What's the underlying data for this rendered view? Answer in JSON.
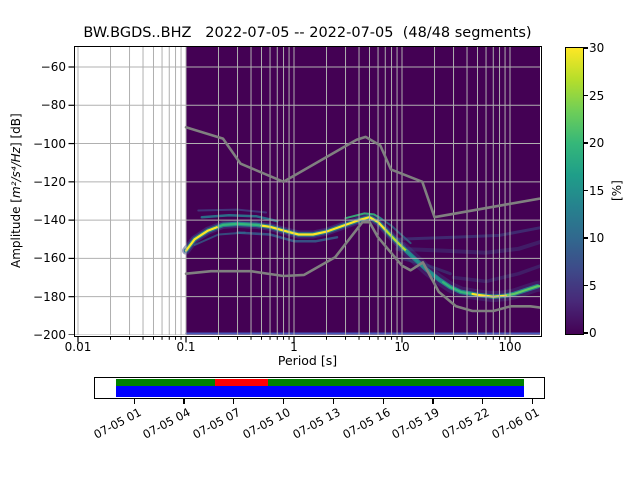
{
  "figure": {
    "title": "BW.BGDS..BHZ   2022-07-05 -- 2022-07-05  (48/48 segments)"
  },
  "chart_data": {
    "type": "heatmap",
    "title": "BW.BGDS..BHZ   2022-07-05 -- 2022-07-05  (48/48 segments)",
    "xlabel": "Period [s]",
    "ylabel_prefix": "Amplitude [",
    "ylabel_math": "m²/s⁴/Hz",
    "ylabel_suffix": "] [dB]",
    "xscale": "log",
    "xlim": [
      0.0094,
      190
    ],
    "ylim": [
      -200,
      -49.5
    ],
    "grid": true,
    "x_tick_values": [
      0.01,
      0.1,
      1,
      10,
      100
    ],
    "x_tick_labels": [
      "0.01",
      "0.1",
      "1",
      "10",
      "100"
    ],
    "y_tick_values": [
      -60,
      -80,
      -100,
      -120,
      -140,
      -160,
      -180,
      -200
    ],
    "y_tick_labels": [
      "−60",
      "−80",
      "−100",
      "−120",
      "−140",
      "−160",
      "−180",
      "−200"
    ],
    "background_color": "#440154",
    "grid_color": "#b0b0b0",
    "no_data_before_period": 0.1,
    "bottom_row_line": {
      "color": "#4a63c8",
      "dB": -199.2
    },
    "colorbar": {
      "label": "[%]",
      "cmap": "viridis",
      "vmin": 0,
      "vmax": 30,
      "tick_values": [
        0,
        5,
        10,
        15,
        20,
        25,
        30
      ],
      "tick_labels": [
        "0",
        "5",
        "10",
        "15",
        "20",
        "25",
        "30"
      ]
    },
    "noise_models": {
      "color": "#808080",
      "nhnm": [
        [
          0.1,
          -91.5
        ],
        [
          0.22,
          -97.4
        ],
        [
          0.32,
          -110.5
        ],
        [
          0.8,
          -120.0
        ],
        [
          3.8,
          -98.0
        ],
        [
          4.6,
          -96.5
        ],
        [
          6.3,
          -101.0
        ],
        [
          7.9,
          -113.5
        ],
        [
          15.4,
          -120.0
        ],
        [
          20.0,
          -138.5
        ],
        [
          354.8,
          -126.0
        ]
      ],
      "nlnm": [
        [
          0.1,
          -168.0
        ],
        [
          0.17,
          -166.7
        ],
        [
          0.4,
          -166.7
        ],
        [
          0.8,
          -169.2
        ],
        [
          1.24,
          -168.6
        ],
        [
          2.4,
          -159.4
        ],
        [
          4.3,
          -141.1
        ],
        [
          5.0,
          -141.1
        ],
        [
          6.0,
          -149.0
        ],
        [
          10.0,
          -163.8
        ],
        [
          12.0,
          -166.2
        ],
        [
          15.6,
          -162.1
        ],
        [
          21.9,
          -177.5
        ],
        [
          31.6,
          -185.0
        ],
        [
          45.0,
          -187.5
        ],
        [
          70.0,
          -187.5
        ],
        [
          101.0,
          -185.0
        ],
        [
          154.0,
          -185.0
        ],
        [
          328.0,
          -187.5
        ]
      ]
    },
    "psd_mode_line": [
      [
        0.1,
        -156
      ],
      [
        0.12,
        -150
      ],
      [
        0.16,
        -145.5
      ],
      [
        0.22,
        -142.5
      ],
      [
        0.3,
        -142
      ],
      [
        0.45,
        -142.5
      ],
      [
        0.6,
        -143.5
      ],
      [
        0.8,
        -145.5
      ],
      [
        1.1,
        -147.5
      ],
      [
        1.5,
        -147.5
      ],
      [
        2.0,
        -146
      ],
      [
        3.0,
        -142.5
      ],
      [
        4.0,
        -140
      ],
      [
        5.0,
        -138.5
      ],
      [
        6.0,
        -141
      ],
      [
        7.0,
        -145
      ],
      [
        8.5,
        -150
      ],
      [
        10,
        -154
      ],
      [
        13,
        -160
      ],
      [
        17,
        -166
      ],
      [
        22,
        -171
      ],
      [
        28,
        -175
      ],
      [
        35,
        -177.5
      ],
      [
        50,
        -179
      ],
      [
        70,
        -180
      ],
      [
        90,
        -179.5
      ],
      [
        110,
        -178.5
      ],
      [
        140,
        -176.5
      ],
      [
        180,
        -174.5
      ]
    ],
    "bright_segments": [
      {
        "from": 0.1,
        "to": 0.2,
        "color": "#fde725"
      },
      {
        "from": 0.2,
        "to": 0.5,
        "color": "#35b779"
      },
      {
        "from": 0.5,
        "to": 7.2,
        "color": "#fde725"
      },
      {
        "from": 7.2,
        "to": 11,
        "color": "#b5de2b"
      },
      {
        "from": 11,
        "to": 24,
        "color": "#21918c"
      },
      {
        "from": 24,
        "to": 45,
        "color": "#35b779"
      },
      {
        "from": 45,
        "to": 95,
        "color": "#fde725"
      },
      {
        "from": 95,
        "to": 189,
        "color": "#5ec962"
      }
    ],
    "fringes": [
      {
        "color": "#2a788e",
        "width": 2.5,
        "opacity": 0.9,
        "pts": [
          [
            0.14,
            -138.5
          ],
          [
            0.25,
            -137.5
          ],
          [
            0.45,
            -138
          ],
          [
            0.7,
            -140.5
          ]
        ]
      },
      {
        "color": "#414487",
        "width": 2.0,
        "opacity": 0.75,
        "pts": [
          [
            0.13,
            -135
          ],
          [
            0.3,
            -134.5
          ],
          [
            0.55,
            -136
          ]
        ]
      },
      {
        "color": "#355f8d",
        "width": 2.5,
        "opacity": 0.85,
        "pts": [
          [
            0.3,
            -146.5
          ],
          [
            0.6,
            -147.5
          ],
          [
            1.0,
            -151
          ],
          [
            1.6,
            -151
          ],
          [
            2.5,
            -149
          ]
        ]
      },
      {
        "color": "#31688e",
        "width": 2.0,
        "opacity": 0.7,
        "pts": [
          [
            0.12,
            -153
          ],
          [
            0.2,
            -147.5
          ],
          [
            0.35,
            -146.5
          ]
        ]
      },
      {
        "color": "#35b779",
        "width": 2.0,
        "opacity": 0.9,
        "pts": [
          [
            3.0,
            -139
          ],
          [
            4.5,
            -136.5
          ],
          [
            5.5,
            -137
          ],
          [
            6.5,
            -139.5
          ]
        ]
      },
      {
        "color": "#2a788e",
        "width": 2.0,
        "opacity": 0.7,
        "pts": [
          [
            6.0,
            -138
          ],
          [
            8.0,
            -143
          ],
          [
            10,
            -148
          ],
          [
            12,
            -152
          ]
        ]
      }
    ],
    "streaks": [
      {
        "color": "#3b528b",
        "width": 3.0,
        "opacity": 0.5,
        "pts": [
          [
            9,
            -150
          ],
          [
            30,
            -149
          ],
          [
            80,
            -148
          ],
          [
            189,
            -144
          ]
        ]
      },
      {
        "color": "#3b528b",
        "width": 4.0,
        "opacity": 0.35,
        "pts": [
          [
            9,
            -155
          ],
          [
            25,
            -156
          ],
          [
            60,
            -157
          ],
          [
            120,
            -155
          ],
          [
            189,
            -151.5
          ]
        ]
      },
      {
        "color": "#355f8d",
        "width": 3.0,
        "opacity": 0.4,
        "pts": [
          [
            10,
            -160
          ],
          [
            18,
            -164
          ],
          [
            28,
            -168
          ]
        ]
      },
      {
        "color": "#3b528b",
        "width": 3.5,
        "opacity": 0.35,
        "pts": [
          [
            30,
            -170
          ],
          [
            60,
            -172
          ],
          [
            120,
            -168
          ],
          [
            189,
            -164
          ]
        ]
      }
    ]
  },
  "coverage": {
    "rows": [
      {
        "top": 1.2,
        "height": 6.6,
        "segments": [
          {
            "color": "#008000",
            "from": 0.0,
            "to": 0.2426
          },
          {
            "color": "#ff0000",
            "from": 0.2426,
            "to": 0.3725
          },
          {
            "color": "#008000",
            "from": 0.3725,
            "to": 1.0
          }
        ]
      },
      {
        "top": 7.8,
        "height": 11.6,
        "segments": [
          {
            "color": "#0000ff",
            "from": 0.0,
            "to": 1.0
          }
        ]
      }
    ],
    "tick_labels": [
      "07-05 01",
      "07-05 04",
      "07-05 07",
      "07-05 10",
      "07-05 13",
      "07-05 16",
      "07-05 19",
      "07-05 22",
      "07-06 01"
    ]
  }
}
